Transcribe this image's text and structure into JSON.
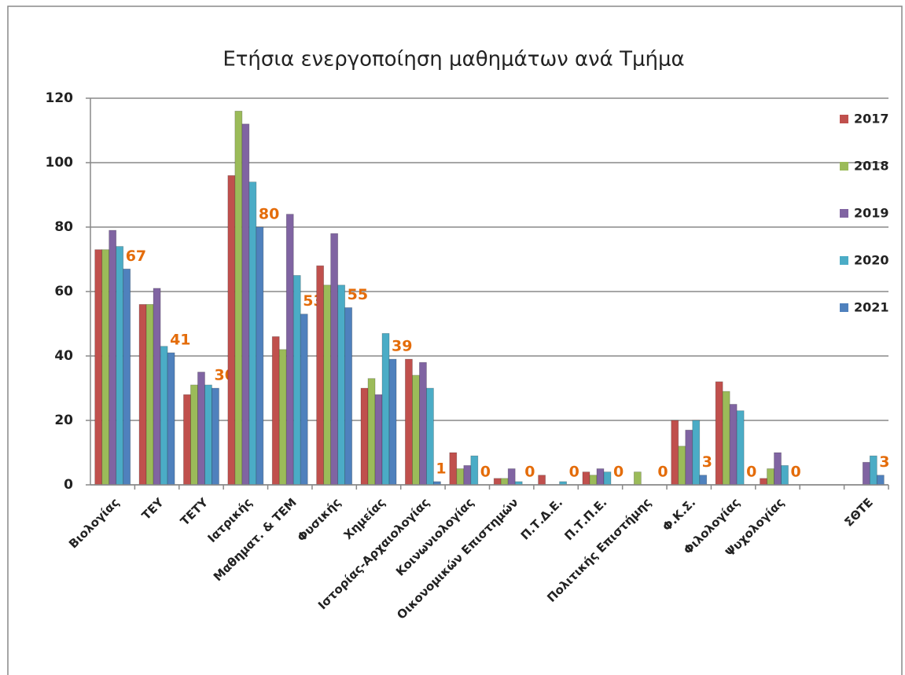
{
  "chart_data": {
    "type": "bar",
    "title": "Ετήσια ενεργοποίηση  μαθημάτων ανά Τμήμα",
    "categories": [
      "Βιολογίας",
      "ΤΕΥ",
      "ΤΕΤΥ",
      "Ιατρικής",
      "Μαθηματ. & ΤΕΜ",
      "Φυσικής",
      "Χημείας",
      "Ιστορίας-Αρχαιολογίας",
      "Κοινωνιολογίας",
      "Οικονομικών Επιστημών",
      "Π.Τ.Δ.Ε.",
      "Π.Τ.Π.Ε.",
      "Πολιτικής Επιστήμης",
      "Φ.Κ.Σ.",
      "Φιλολογίας",
      "Ψυχολογίας",
      null,
      "ΣΘΤΕ"
    ],
    "series": [
      {
        "name": "2017",
        "color": "#c0504d",
        "values": [
          73,
          56,
          28,
          96,
          46,
          68,
          30,
          39,
          10,
          2,
          3,
          4,
          0,
          20,
          32,
          2,
          null,
          0
        ]
      },
      {
        "name": "2018",
        "color": "#9bbb59",
        "values": [
          73,
          56,
          31,
          116,
          42,
          62,
          33,
          34,
          5,
          2,
          0,
          3,
          4,
          12,
          29,
          5,
          null,
          0
        ]
      },
      {
        "name": "2019",
        "color": "#8064a2",
        "values": [
          79,
          61,
          35,
          112,
          84,
          78,
          28,
          38,
          6,
          5,
          0,
          5,
          0,
          17,
          25,
          10,
          null,
          7
        ]
      },
      {
        "name": "2020",
        "color": "#4bacc6",
        "values": [
          74,
          43,
          31,
          94,
          65,
          62,
          47,
          30,
          9,
          1,
          1,
          4,
          0,
          20,
          23,
          6,
          null,
          9
        ]
      },
      {
        "name": "2021",
        "color": "#4f81bd",
        "values": [
          67,
          41,
          30,
          80,
          53,
          55,
          39,
          1,
          0,
          0,
          0,
          0,
          0,
          3,
          0,
          0,
          null,
          3
        ]
      }
    ],
    "data_labels_series": 4,
    "data_label_color": "#e46c0a",
    "ylim": [
      0,
      120
    ],
    "yticks": [
      0,
      20,
      40,
      60,
      80,
      100,
      120
    ],
    "grid": true,
    "legend": "right"
  }
}
